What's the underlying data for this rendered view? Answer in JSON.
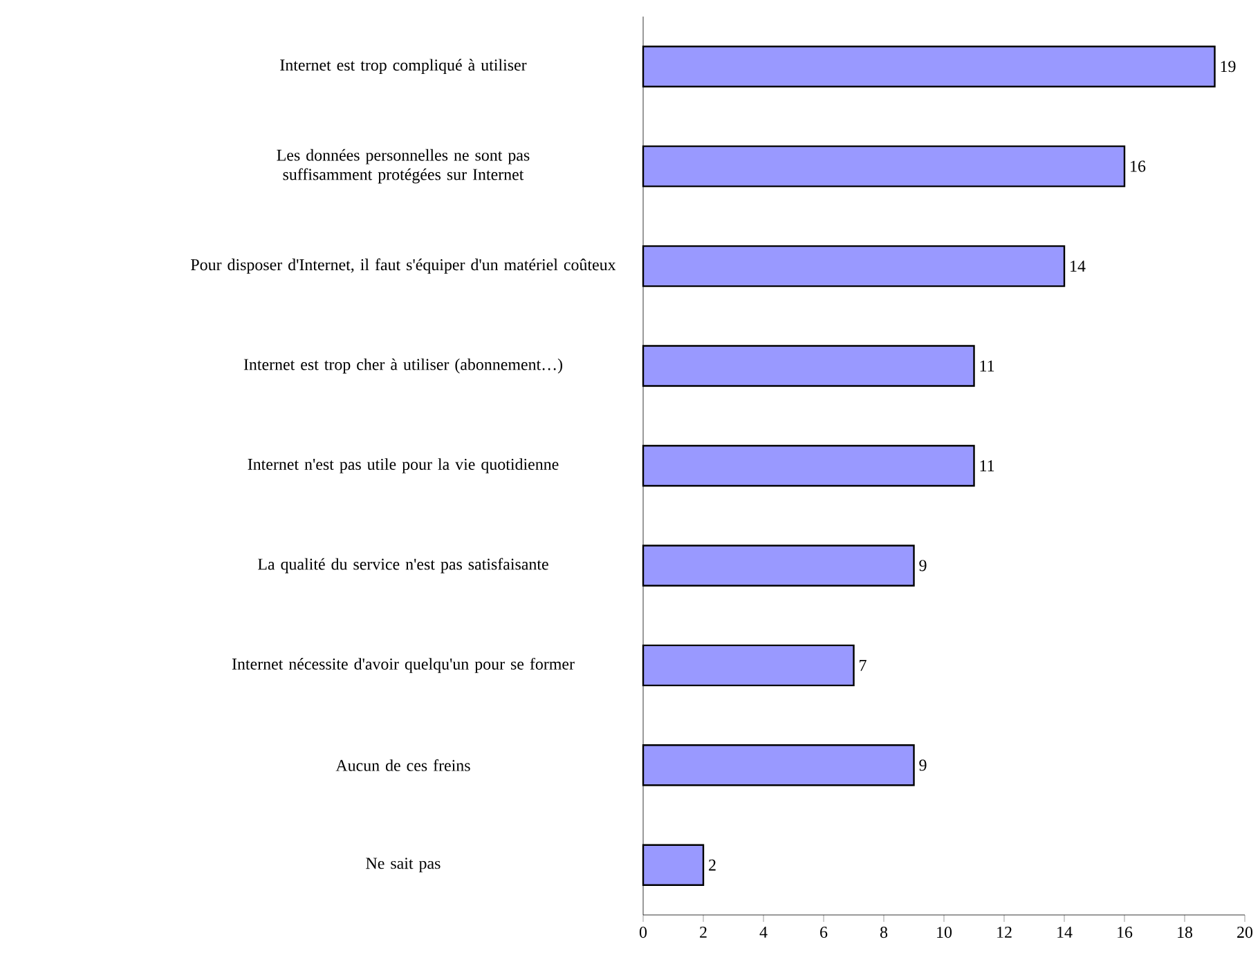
{
  "chart_data": {
    "type": "bar",
    "orientation": "horizontal",
    "categories": [
      "Internet est trop compliqué à utiliser",
      "Les données personnelles ne sont pas suffisamment protégées sur Internet",
      "Pour disposer d'Internet, il faut s'équiper d'un matériel coûteux",
      "Internet est trop cher à utiliser (abonnement…)",
      "Internet n'est pas utile pour la vie quotidienne",
      "La qualité du service n'est pas satisfaisante",
      "Internet nécessite d'avoir quelqu'un pour se former",
      "Aucun de ces freins",
      "Ne sait pas"
    ],
    "values": [
      19,
      16,
      14,
      11,
      11,
      9,
      7,
      9,
      2
    ],
    "color": "#9999ff",
    "data_labels": true,
    "xlim": [
      0,
      20
    ],
    "xticks": [
      0,
      2,
      4,
      6,
      8,
      10,
      12,
      14,
      16,
      18,
      20
    ]
  }
}
